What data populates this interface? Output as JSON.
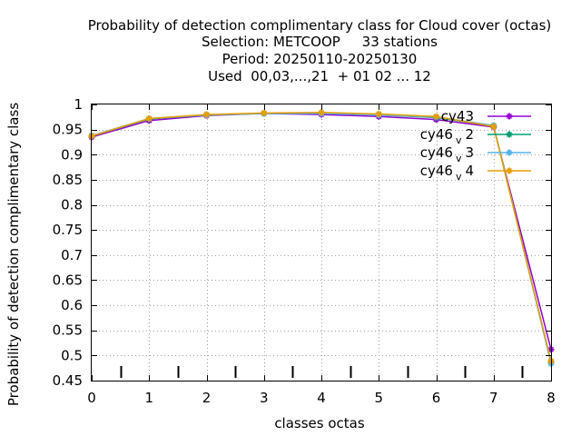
{
  "chart_data": {
    "type": "line",
    "title_lines": [
      "Probability of detection complimentary class  for Cloud cover (octas)",
      "Selection: METCOOP     33 stations",
      "Period: 20250110-20250130",
      "Used  00,03,...,21  + 01 02 ... 12"
    ],
    "xlabel": "classes octas",
    "ylabel": "Probability of detection complimentary class",
    "xlim": [
      0,
      8
    ],
    "ylim": [
      0.45,
      1.0
    ],
    "xticks": [
      0,
      1,
      2,
      3,
      4,
      5,
      6,
      7,
      8
    ],
    "xtick_labels": [
      "0",
      "1",
      "2",
      "3",
      "4",
      "5",
      "6",
      "7",
      "8"
    ],
    "yticks": [
      0.45,
      0.5,
      0.55,
      0.6,
      0.65,
      0.7,
      0.75,
      0.8,
      0.85,
      0.9,
      0.95,
      1.0
    ],
    "ytick_labels": [
      "0.45",
      "0.5",
      "0.55",
      "0.6",
      "0.65",
      "0.7",
      "0.75",
      "0.8",
      "0.85",
      "0.9",
      "0.95",
      "1"
    ],
    "bin_marks": [
      0.5,
      1.5,
      2.5,
      3.5,
      4.5,
      5.5,
      6.5,
      7.5
    ],
    "grid": true,
    "legend_position": "top-right",
    "x": [
      0,
      1,
      2,
      3,
      4,
      5,
      6,
      7,
      8
    ],
    "series": [
      {
        "name": "cy43",
        "name_main": "cy43",
        "name_sub": "",
        "color": "#9400d3",
        "values": [
          0.935,
          0.968,
          0.978,
          0.982,
          0.98,
          0.976,
          0.97,
          0.955,
          0.512
        ]
      },
      {
        "name": "cy46_v2",
        "name_main": "cy46",
        "name_sub": "v",
        "name_suffix": "2",
        "color": "#009e73",
        "values": [
          0.937,
          0.971,
          0.979,
          0.982,
          0.982,
          0.979,
          0.974,
          0.957,
          0.488
        ]
      },
      {
        "name": "cy46_v3",
        "name_main": "cy46",
        "name_sub": "v",
        "name_suffix": "3",
        "color": "#56b4e9",
        "values": [
          0.938,
          0.972,
          0.979,
          0.982,
          0.982,
          0.979,
          0.975,
          0.958,
          0.484
        ]
      },
      {
        "name": "cy46_v4",
        "name_main": "cy46",
        "name_sub": "v",
        "name_suffix": "4",
        "color": "#e69f00",
        "values": [
          0.937,
          0.972,
          0.98,
          0.983,
          0.984,
          0.981,
          0.976,
          0.956,
          0.489
        ]
      }
    ]
  }
}
